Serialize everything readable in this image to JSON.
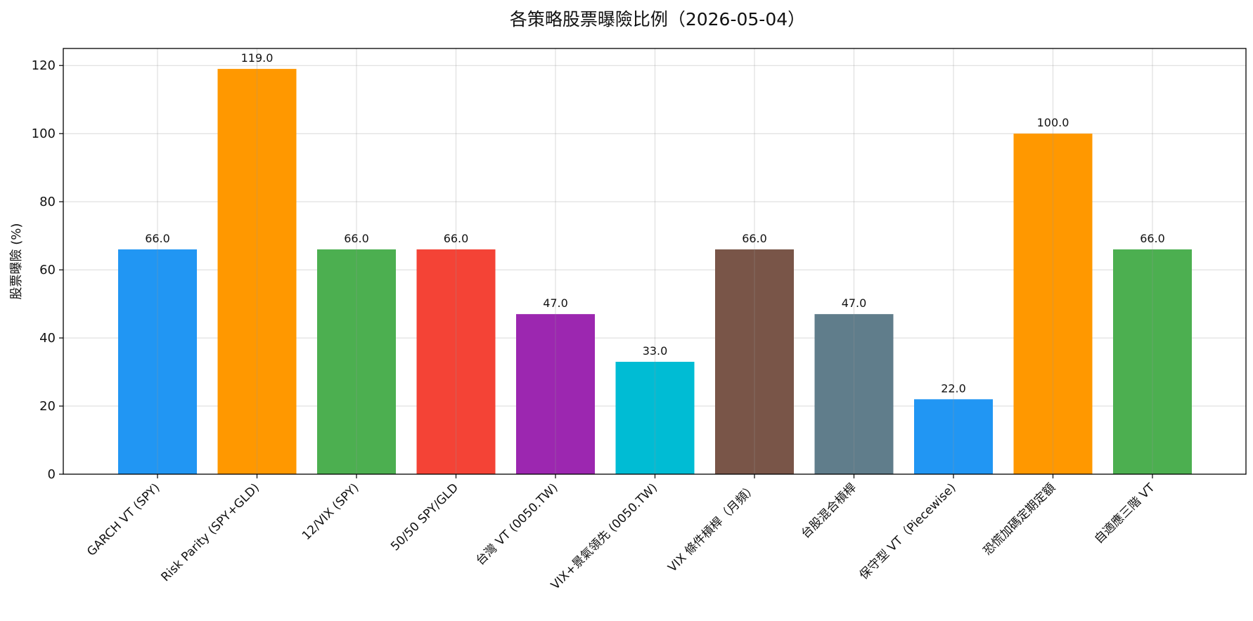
{
  "chart_data": {
    "type": "bar",
    "title": "各策略股票曝險比例（2026-05-04）",
    "xlabel": "",
    "ylabel": "股票曝險 (%)",
    "ylim": [
      0,
      125
    ],
    "yticks": [
      0,
      20,
      40,
      60,
      80,
      100,
      120
    ],
    "grid": true,
    "categories": [
      "GARCH VT (SPY)",
      "Risk Parity (SPY+GLD)",
      "12/VIX (SPY)",
      "50/50 SPY/GLD",
      "台灣 VT (0050.TW)",
      "VIX+景氣領先 (0050.TW)",
      "VIX 條件槓桿（月頻）",
      "台股混合槓桿",
      "保守型 VT（Piecewise)",
      "恐慌加碼定期定額",
      "自適應三階 VT"
    ],
    "values": [
      66.0,
      119.0,
      66.0,
      66.0,
      47.0,
      33.0,
      66.0,
      47.0,
      22.0,
      100.0,
      66.0
    ],
    "data_labels": [
      "66.0",
      "119.0",
      "66.0",
      "66.0",
      "47.0",
      "33.0",
      "66.0",
      "47.0",
      "22.0",
      "100.0",
      "66.0"
    ],
    "colors": [
      "#2196F3",
      "#FF9800",
      "#4CAF50",
      "#F44336",
      "#9C27B0",
      "#00BCD4",
      "#795548",
      "#607D8B",
      "#2196F3",
      "#FF9800",
      "#4CAF50"
    ]
  }
}
